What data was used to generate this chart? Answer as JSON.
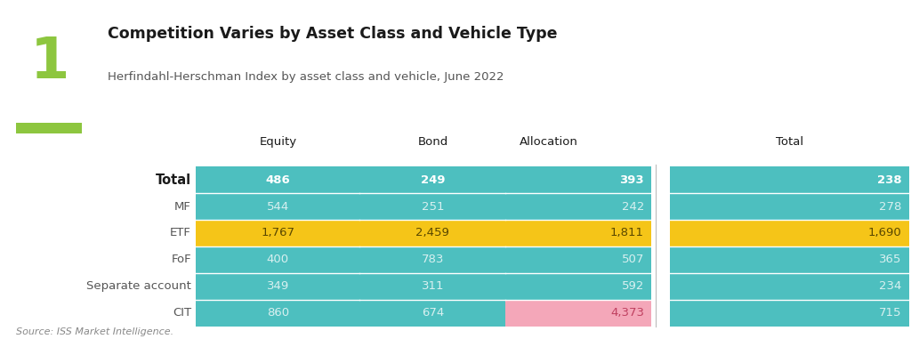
{
  "title": "Competition Varies by Asset Class and Vehicle Type",
  "subtitle": "Herfindahl-Herschman Index by asset class and vehicle, June 2022",
  "source": "Source: ISS Market Intelligence.",
  "number_label": "1",
  "columns": [
    "Equity",
    "Bond",
    "Allocation",
    "Total"
  ],
  "rows": [
    {
      "label": "Total",
      "label_bold": true,
      "values": [
        "486",
        "249",
        "393",
        "238"
      ],
      "text_bold": true,
      "cell_colors": [
        "#4dbfbf",
        "#4dbfbf",
        "#4dbfbf",
        "#4dbfbf"
      ],
      "text_colors": [
        "#ffffff",
        "#ffffff",
        "#ffffff",
        "#ffffff"
      ]
    },
    {
      "label": "MF",
      "label_bold": false,
      "values": [
        "544",
        "251",
        "242",
        "278"
      ],
      "text_bold": false,
      "cell_colors": [
        "#4dbfbf",
        "#4dbfbf",
        "#4dbfbf",
        "#4dbfbf"
      ],
      "text_colors": [
        "#d8f0f0",
        "#d8f0f0",
        "#d8f0f0",
        "#d8f0f0"
      ]
    },
    {
      "label": "ETF",
      "label_bold": false,
      "values": [
        "1,767",
        "2,459",
        "1,811",
        "1,690"
      ],
      "text_bold": false,
      "cell_colors": [
        "#f5c518",
        "#f5c518",
        "#f5c518",
        "#f5c518"
      ],
      "text_colors": [
        "#5a4800",
        "#5a4800",
        "#5a4800",
        "#5a4800"
      ]
    },
    {
      "label": "FoF",
      "label_bold": false,
      "values": [
        "400",
        "783",
        "507",
        "365"
      ],
      "text_bold": false,
      "cell_colors": [
        "#4dbfbf",
        "#4dbfbf",
        "#4dbfbf",
        "#4dbfbf"
      ],
      "text_colors": [
        "#d8f0f0",
        "#d8f0f0",
        "#d8f0f0",
        "#d8f0f0"
      ]
    },
    {
      "label": "Separate account",
      "label_bold": false,
      "values": [
        "349",
        "311",
        "592",
        "234"
      ],
      "text_bold": false,
      "cell_colors": [
        "#4dbfbf",
        "#4dbfbf",
        "#4dbfbf",
        "#4dbfbf"
      ],
      "text_colors": [
        "#d8f0f0",
        "#d8f0f0",
        "#d8f0f0",
        "#d8f0f0"
      ]
    },
    {
      "label": "CIT",
      "label_bold": false,
      "values": [
        "860",
        "674",
        "4,373",
        "715"
      ],
      "text_bold": false,
      "cell_colors": [
        "#4dbfbf",
        "#4dbfbf",
        "#f4a7b9",
        "#4dbfbf"
      ],
      "text_colors": [
        "#d8f0f0",
        "#d8f0f0",
        "#c04060",
        "#d8f0f0"
      ]
    }
  ],
  "teal_color": "#4dbfbf",
  "yellow_color": "#f5c518",
  "pink_color": "#f4a7b9",
  "green_accent": "#8dc63f",
  "number_color": "#8dc63f",
  "bg_color": "#ffffff",
  "title_color": "#1a1a1a",
  "subtitle_color": "#555555",
  "source_color": "#888888",
  "col_header_color": "#1a1a1a",
  "row_label_color_total": "#1a1a1a",
  "row_label_color": "#555555"
}
